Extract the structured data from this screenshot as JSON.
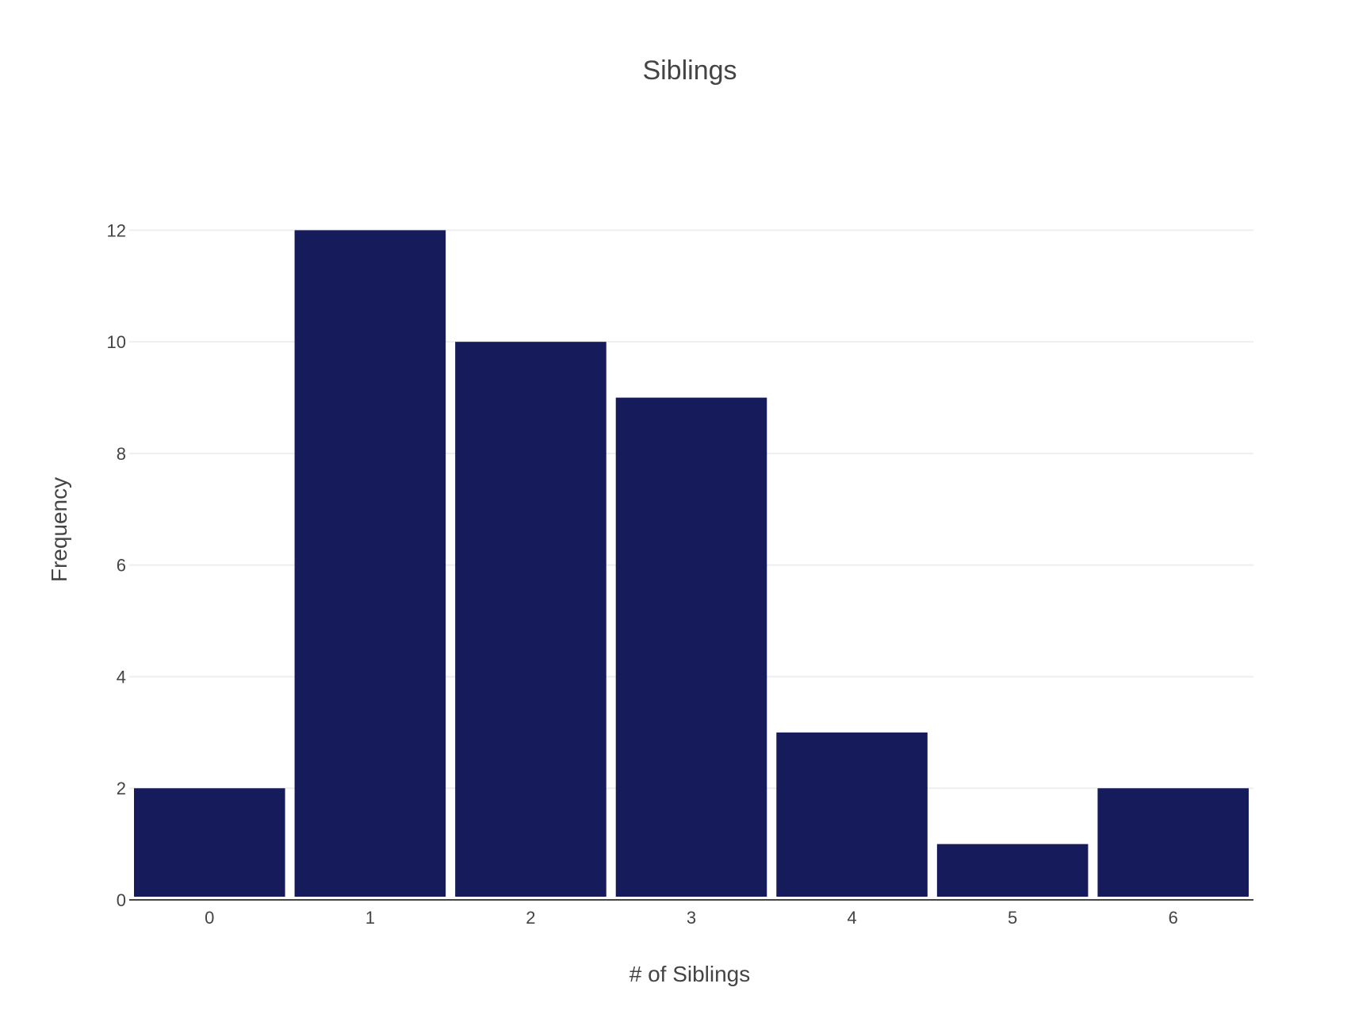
{
  "chart_data": {
    "type": "bar",
    "title": "Siblings",
    "xlabel": "# of Siblings",
    "ylabel": "Frequency",
    "categories": [
      "0",
      "1",
      "2",
      "3",
      "4",
      "5",
      "6"
    ],
    "values": [
      2,
      12,
      10,
      9,
      3,
      1,
      2
    ],
    "ylim": [
      0,
      13
    ],
    "yticks": [
      0,
      2,
      4,
      6,
      8,
      10,
      12
    ],
    "grid": true,
    "bar_color": "#151b5b"
  }
}
